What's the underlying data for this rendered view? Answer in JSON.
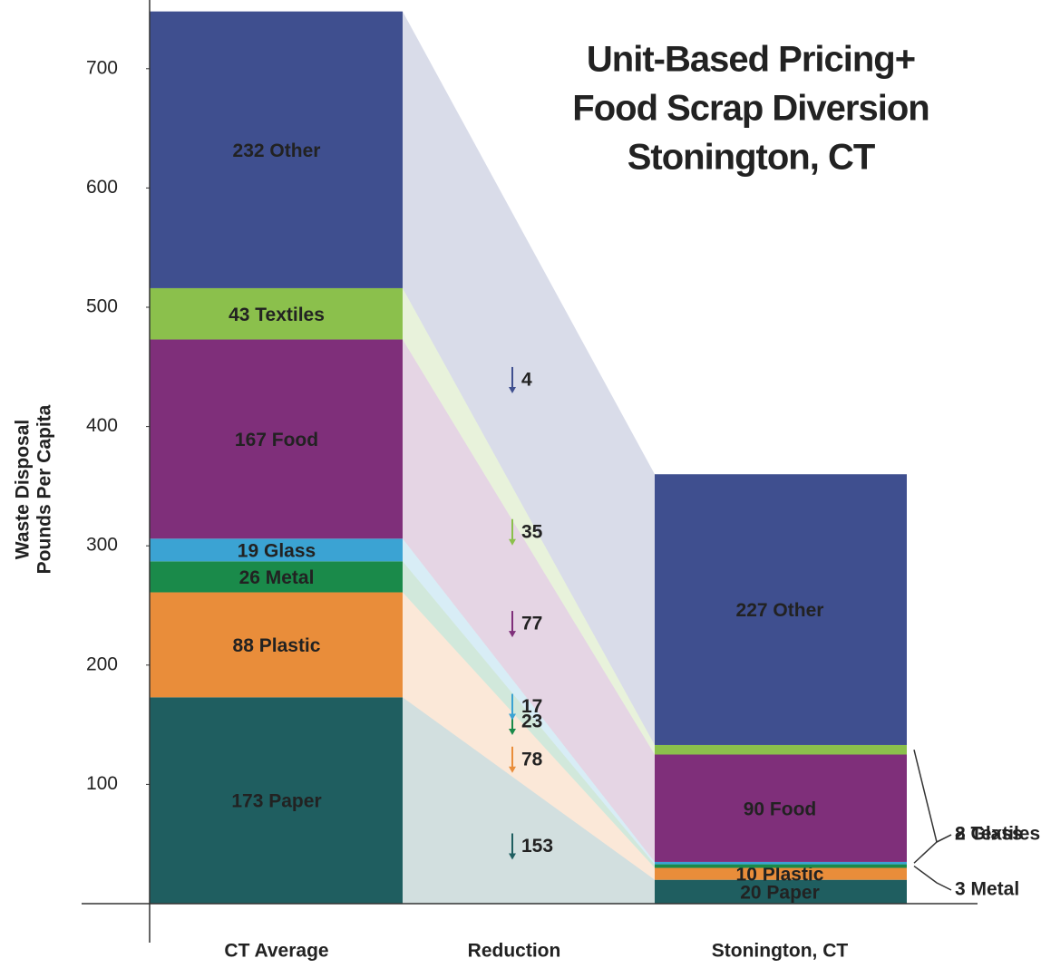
{
  "chart_data": {
    "type": "stacked_bar_reduction",
    "title": [
      "Unit-Based Pricing+",
      "Food Scrap Diversion",
      "Stonington, CT"
    ],
    "y_label": [
      "Waste Disposal",
      "Pounds Per Capita"
    ],
    "categories": [
      "CT Average",
      "Reduction",
      "Stonington, CT"
    ],
    "series": [
      {
        "name": "Paper",
        "color": "#1f5e60",
        "values": [
          173,
          153,
          20
        ],
        "value_labels": [
          "173 Paper",
          "153",
          "20 Paper"
        ]
      },
      {
        "name": "Plastic",
        "color": "#e98d3a",
        "values": [
          88,
          78,
          10
        ],
        "value_labels": [
          "88 Plastic",
          "78",
          "10 Plastic"
        ]
      },
      {
        "name": "Metal",
        "color": "#1a8a4a",
        "values": [
          26,
          23,
          3
        ],
        "value_labels": [
          "26 Metal",
          "23",
          "3 Metal"
        ]
      },
      {
        "name": "Glass",
        "color": "#3ba3d3",
        "values": [
          19,
          17,
          2
        ],
        "value_labels": [
          "19 Glass",
          "17",
          "2 Glass"
        ]
      },
      {
        "name": "Food",
        "color": "#7f2f7a",
        "values": [
          167,
          77,
          90
        ],
        "value_labels": [
          "167 Food",
          "77",
          "90 Food"
        ]
      },
      {
        "name": "Textiles",
        "color": "#8bc04c",
        "values": [
          43,
          35,
          8
        ],
        "value_labels": [
          "43 Textiles",
          "35",
          "8 Textiles"
        ]
      },
      {
        "name": "Other",
        "color": "#3f4f8f",
        "values": [
          232,
          4,
          227
        ],
        "value_labels": [
          "232 Other",
          "4",
          "227 Other"
        ]
      }
    ],
    "ylim": [
      0,
      750
    ],
    "yticks": [
      100,
      200,
      300,
      400,
      500,
      600,
      700
    ]
  }
}
